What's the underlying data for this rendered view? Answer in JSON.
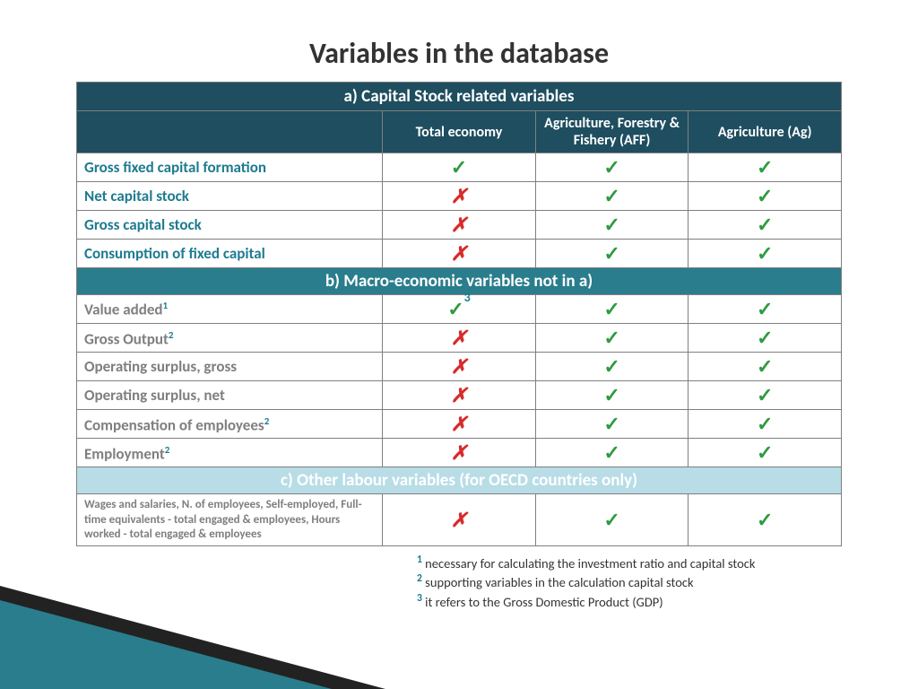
{
  "title": "Variables in the database",
  "columns": [
    "Total economy",
    "Agriculture, Forestry & Fishery (AFF)",
    "Agriculture (Ag)"
  ],
  "section_a": {
    "header": "a) Capital Stock related variables",
    "rows": [
      {
        "label": "Gross fixed capital formation",
        "cells": [
          "check",
          "check",
          "check"
        ]
      },
      {
        "label": "Net capital stock",
        "cells": [
          "cross",
          "check",
          "check"
        ]
      },
      {
        "label": "Gross capital stock",
        "cells": [
          "cross",
          "check",
          "check"
        ]
      },
      {
        "label": "Consumption of fixed capital",
        "cells": [
          "cross",
          "check",
          "check"
        ]
      }
    ]
  },
  "section_b": {
    "header": "b) Macro-economic variables not in a)",
    "rows": [
      {
        "label": "Value added",
        "sup": "1",
        "cells": [
          "check3",
          "check",
          "check"
        ]
      },
      {
        "label": "Gross Output",
        "sup": "2",
        "cells": [
          "cross",
          "check",
          "check"
        ]
      },
      {
        "label": "Operating surplus, gross",
        "cells": [
          "cross",
          "check",
          "check"
        ]
      },
      {
        "label": "Operating surplus, net",
        "cells": [
          "cross",
          "check",
          "check"
        ]
      },
      {
        "label": "Compensation of employees",
        "sup": "2",
        "cells": [
          "cross",
          "check",
          "check"
        ]
      },
      {
        "label": "Employment",
        "sup": "2",
        "cells": [
          "cross",
          "check",
          "check"
        ]
      }
    ]
  },
  "section_c": {
    "header": "c) Other labour variables (for OECD countries only)",
    "row": {
      "label": "Wages and salaries, N. of employees, Self-employed, Full-time equivalents - total engaged & employees, Hours worked - total engaged & employees",
      "cells": [
        "cross",
        "check",
        "check"
      ]
    }
  },
  "footnotes": [
    {
      "num": "1",
      "text": " necessary for calculating the investment ratio and capital stock"
    },
    {
      "num": "2",
      "text": " supporting variables in the calculation capital stock"
    },
    {
      "num": "3",
      "text": " it refers to the Gross Domestic Product (GDP)"
    }
  ],
  "glyphs": {
    "check": "✓",
    "cross": "✗"
  },
  "colors": {
    "dark_teal": "#1e4e5f",
    "mid_teal": "#2a7d8c",
    "light_teal": "#b8dde6",
    "label_teal": "#1e7b8f",
    "label_gray": "#7f7f7f",
    "check_green": "#2e9b3f",
    "cross_red": "#d82a2a"
  }
}
